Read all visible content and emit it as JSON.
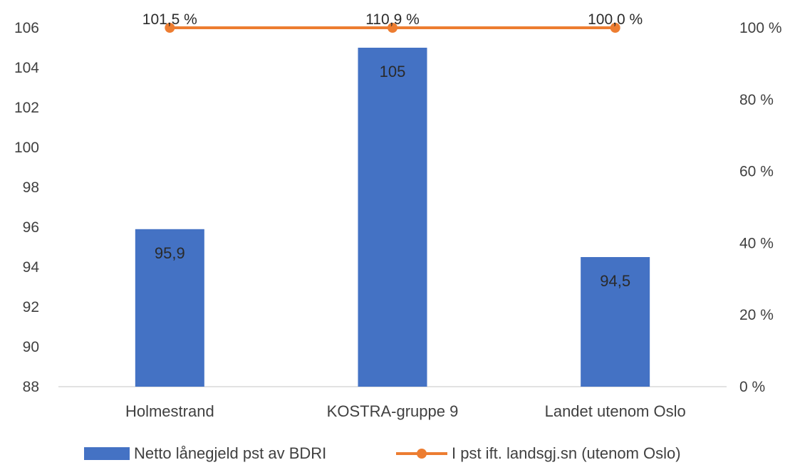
{
  "chart_data": {
    "type": "bar",
    "categories": [
      "Holmestrand",
      "KOSTRA-gruppe 9",
      "Landet utenom Oslo"
    ],
    "series": [
      {
        "name": "Netto lånegjeld pst av BDRI",
        "type": "bar",
        "axis": "left",
        "values": [
          95.9,
          105,
          94.5
        ],
        "labels": [
          "95,9",
          "105",
          "94,5"
        ],
        "color": "#4472C4"
      },
      {
        "name": "I pst ift. landsgj.sn (utenom Oslo)",
        "type": "line",
        "axis": "right",
        "values": [
          101.5,
          110.9,
          100.0
        ],
        "labels": [
          "101,5 %",
          "110,9 %",
          "100,0 %"
        ],
        "color": "#ED7D31"
      }
    ],
    "y_left": {
      "ylim": [
        88,
        106
      ],
      "ticks": [
        "88",
        "90",
        "92",
        "94",
        "96",
        "98",
        "100",
        "102",
        "104",
        "106"
      ]
    },
    "y_right": {
      "ylim": [
        0,
        100
      ],
      "ticks": [
        "0 %",
        "20 %",
        "40 %",
        "60 %",
        "80 %",
        "100 %"
      ]
    },
    "legend_position": "bottom",
    "grid": false,
    "title": ""
  }
}
